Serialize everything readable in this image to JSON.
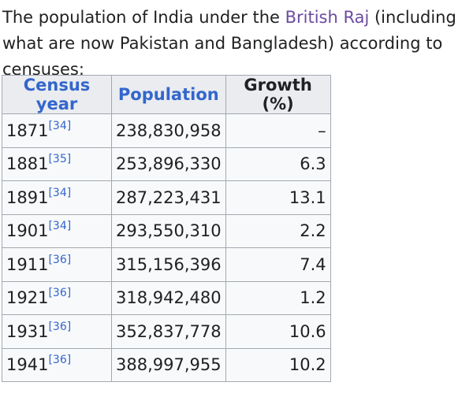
{
  "intro": {
    "before": "The population of India under the ",
    "link": "British Raj",
    "after": " (including what are now Pakistan and Bangladesh) according to censuses:"
  },
  "table": {
    "headers": [
      "Census year",
      "Population",
      "Growth (%)"
    ],
    "rows": [
      {
        "year": "1871",
        "ref": "[34]",
        "population": "238,830,958",
        "growth": "–"
      },
      {
        "year": "1881",
        "ref": "[35]",
        "population": "253,896,330",
        "growth": "6.3"
      },
      {
        "year": "1891",
        "ref": "[34]",
        "population": "287,223,431",
        "growth": "13.1"
      },
      {
        "year": "1901",
        "ref": "[34]",
        "population": "293,550,310",
        "growth": "2.2"
      },
      {
        "year": "1911",
        "ref": "[36]",
        "population": "315,156,396",
        "growth": "7.4"
      },
      {
        "year": "1921",
        "ref": "[36]",
        "population": "318,942,480",
        "growth": "1.2"
      },
      {
        "year": "1931",
        "ref": "[36]",
        "population": "352,837,778",
        "growth": "10.6"
      },
      {
        "year": "1941",
        "ref": "[36]",
        "population": "388,997,955",
        "growth": "10.2"
      }
    ]
  },
  "colors": {
    "link": "#6b4ba1",
    "header_link": "#3366cc",
    "header_bg": "#eaecf0",
    "border": "#a2a9b1"
  }
}
